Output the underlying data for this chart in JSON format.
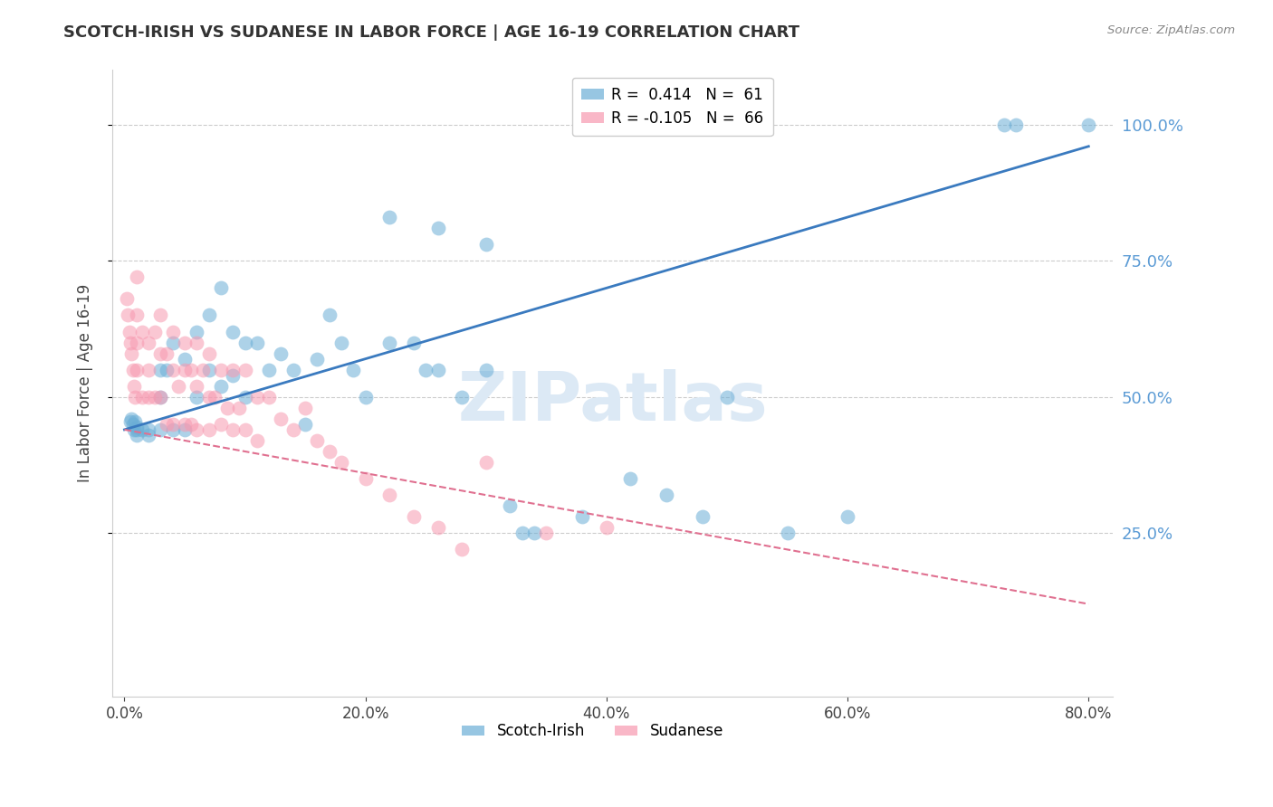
{
  "title": "SCOTCH-IRISH VS SUDANESE IN LABOR FORCE | AGE 16-19 CORRELATION CHART",
  "source": "Source: ZipAtlas.com",
  "ylabel_label": "In Labor Force | Age 16-19",
  "xlim": [
    -0.01,
    0.82
  ],
  "ylim": [
    -0.05,
    1.1
  ],
  "yticks": [
    0.25,
    0.5,
    0.75,
    1.0
  ],
  "xticks": [
    0.0,
    0.2,
    0.4,
    0.6,
    0.8
  ],
  "scotch_irish_R": 0.414,
  "scotch_irish_N": 61,
  "sudanese_R": -0.105,
  "sudanese_N": 66,
  "scatter_blue_color": "#6baed6",
  "scatter_pink_color": "#f799b0",
  "line_blue_color": "#3a7abf",
  "line_pink_color": "#e07090",
  "grid_color": "#cccccc",
  "right_tick_color": "#5b9bd5",
  "watermark_color": "#dce9f5",
  "blue_line_x0": 0.0,
  "blue_line_y0": 0.44,
  "blue_line_x1": 0.8,
  "blue_line_y1": 0.96,
  "pink_line_x0": 0.0,
  "pink_line_y0": 0.44,
  "pink_line_x1": 0.8,
  "pink_line_y1": 0.12,
  "si_x": [
    0.005,
    0.006,
    0.007,
    0.008,
    0.009,
    0.01,
    0.01,
    0.01,
    0.015,
    0.02,
    0.02,
    0.03,
    0.03,
    0.03,
    0.035,
    0.04,
    0.04,
    0.05,
    0.05,
    0.06,
    0.06,
    0.07,
    0.07,
    0.08,
    0.08,
    0.09,
    0.09,
    0.1,
    0.1,
    0.11,
    0.12,
    0.13,
    0.14,
    0.15,
    0.16,
    0.17,
    0.18,
    0.19,
    0.2,
    0.22,
    0.24,
    0.25,
    0.26,
    0.28,
    0.3,
    0.32,
    0.33,
    0.34,
    0.38,
    0.42,
    0.45,
    0.48,
    0.5,
    0.55,
    0.6,
    0.73,
    0.74,
    0.8,
    0.26,
    0.3,
    0.22
  ],
  "si_y": [
    0.455,
    0.46,
    0.45,
    0.44,
    0.455,
    0.445,
    0.44,
    0.43,
    0.44,
    0.43,
    0.44,
    0.5,
    0.55,
    0.44,
    0.55,
    0.6,
    0.44,
    0.57,
    0.44,
    0.62,
    0.5,
    0.65,
    0.55,
    0.7,
    0.52,
    0.62,
    0.54,
    0.6,
    0.5,
    0.6,
    0.55,
    0.58,
    0.55,
    0.45,
    0.57,
    0.65,
    0.6,
    0.55,
    0.5,
    0.6,
    0.6,
    0.55,
    0.55,
    0.5,
    0.55,
    0.3,
    0.25,
    0.25,
    0.28,
    0.35,
    0.32,
    0.28,
    0.5,
    0.25,
    0.28,
    1.0,
    1.0,
    1.0,
    0.81,
    0.78,
    0.83
  ],
  "su_x": [
    0.002,
    0.003,
    0.004,
    0.005,
    0.006,
    0.007,
    0.008,
    0.009,
    0.01,
    0.01,
    0.01,
    0.01,
    0.015,
    0.015,
    0.02,
    0.02,
    0.02,
    0.025,
    0.025,
    0.03,
    0.03,
    0.03,
    0.035,
    0.035,
    0.04,
    0.04,
    0.04,
    0.045,
    0.05,
    0.05,
    0.05,
    0.055,
    0.055,
    0.06,
    0.06,
    0.06,
    0.065,
    0.07,
    0.07,
    0.07,
    0.075,
    0.08,
    0.08,
    0.085,
    0.09,
    0.09,
    0.095,
    0.1,
    0.1,
    0.11,
    0.11,
    0.12,
    0.13,
    0.14,
    0.15,
    0.16,
    0.17,
    0.18,
    0.2,
    0.22,
    0.24,
    0.26,
    0.28,
    0.3,
    0.35,
    0.4
  ],
  "su_y": [
    0.68,
    0.65,
    0.62,
    0.6,
    0.58,
    0.55,
    0.52,
    0.5,
    0.72,
    0.65,
    0.6,
    0.55,
    0.62,
    0.5,
    0.6,
    0.55,
    0.5,
    0.62,
    0.5,
    0.65,
    0.58,
    0.5,
    0.58,
    0.45,
    0.62,
    0.55,
    0.45,
    0.52,
    0.6,
    0.55,
    0.45,
    0.55,
    0.45,
    0.6,
    0.52,
    0.44,
    0.55,
    0.58,
    0.5,
    0.44,
    0.5,
    0.55,
    0.45,
    0.48,
    0.55,
    0.44,
    0.48,
    0.55,
    0.44,
    0.5,
    0.42,
    0.5,
    0.46,
    0.44,
    0.48,
    0.42,
    0.4,
    0.38,
    0.35,
    0.32,
    0.28,
    0.26,
    0.22,
    0.38,
    0.25,
    0.26
  ]
}
